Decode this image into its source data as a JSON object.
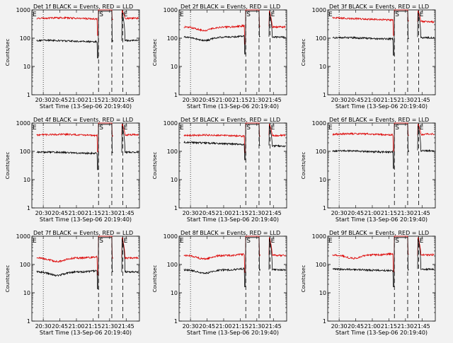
{
  "colors": {
    "background": "#f2f2f2",
    "events": "#000000",
    "lld": "#dd0000",
    "axes": "#000000"
  },
  "common": {
    "ylabel": "Counts/sec",
    "xlabel": "Start Time (13-Sep-06 20:19:40)",
    "x_tick_labels": [
      "20:30",
      "20:45",
      "21:00",
      "21:15",
      "21:30",
      "21:45"
    ],
    "y_tick_labels": [
      "1",
      "10",
      "100",
      "1000"
    ],
    "marker_start": "S",
    "marker_end": "E",
    "marker_left": "E"
  },
  "chart_data": [
    {
      "type": "line",
      "title": "Det 1f BLACK = Events, RED = LLD",
      "xlim": [
        "20:19:40",
        "21:57:00"
      ],
      "ylim": [
        1,
        1000
      ],
      "yscale": "log",
      "x_ticks": [
        "20:30",
        "20:45",
        "21:00",
        "21:15",
        "21:30",
        "21:45"
      ],
      "dotted_line": "20:30",
      "dashed_lines": [
        "21:20",
        "21:32",
        "21:42"
      ],
      "series": [
        {
          "color": "red",
          "shape": "flat",
          "base": 500,
          "peak": 1000
        },
        {
          "color": "black",
          "shape": "flat",
          "base": 80,
          "peak": 900
        }
      ]
    },
    {
      "type": "line",
      "title": "Det 2f BLACK = Events, RED = LLD",
      "xlim": [
        "20:19:40",
        "21:57:00"
      ],
      "ylim": [
        1,
        1000
      ],
      "yscale": "log",
      "x_ticks": [
        "20:30",
        "20:45",
        "21:00",
        "21:15",
        "21:30",
        "21:45"
      ],
      "dotted_line": "20:30",
      "dashed_lines": [
        "21:20",
        "21:32",
        "21:42"
      ],
      "series": [
        {
          "color": "red",
          "shape": "dip",
          "base": 250,
          "peak": 1000
        },
        {
          "color": "black",
          "shape": "dip",
          "base": 110,
          "peak": 900
        }
      ]
    },
    {
      "type": "line",
      "title": "Det 3f BLACK = Events, RED = LLD",
      "xlim": [
        "20:19:40",
        "21:57:00"
      ],
      "ylim": [
        1,
        1000
      ],
      "yscale": "log",
      "x_ticks": [
        "20:30",
        "20:45",
        "21:00",
        "21:15",
        "21:30",
        "21:45"
      ],
      "dotted_line": "20:30",
      "dashed_lines": [
        "21:20",
        "21:32",
        "21:42"
      ],
      "series": [
        {
          "color": "red",
          "shape": "decline",
          "base": 500,
          "peak": 1000
        },
        {
          "color": "black",
          "shape": "flat",
          "base": 100,
          "peak": 900
        }
      ]
    },
    {
      "type": "line",
      "title": "Det 4f BLACK = Events, RED = LLD",
      "xlim": [
        "20:19:40",
        "21:57:00"
      ],
      "ylim": [
        1,
        1000
      ],
      "yscale": "log",
      "x_ticks": [
        "20:30",
        "20:45",
        "21:00",
        "21:15",
        "21:30",
        "21:45"
      ],
      "dotted_line": "20:30",
      "dashed_lines": [
        "21:20",
        "21:32",
        "21:42"
      ],
      "series": [
        {
          "color": "red",
          "shape": "flat",
          "base": 380,
          "peak": 1000
        },
        {
          "color": "black",
          "shape": "flat",
          "base": 90,
          "peak": 900
        }
      ]
    },
    {
      "type": "line",
      "title": "Det 5f BLACK = Events, RED = LLD",
      "xlim": [
        "20:19:40",
        "21:57:00"
      ],
      "ylim": [
        1,
        1000
      ],
      "yscale": "log",
      "x_ticks": [
        "20:30",
        "20:45",
        "21:00",
        "21:15",
        "21:30",
        "21:45"
      ],
      "dotted_line": "20:30",
      "dashed_lines": [
        "21:20",
        "21:32",
        "21:42"
      ],
      "series": [
        {
          "color": "red",
          "shape": "flat",
          "base": 360,
          "peak": 1000
        },
        {
          "color": "black",
          "shape": "decline",
          "base": 200,
          "peak": 900
        }
      ]
    },
    {
      "type": "line",
      "title": "Det 6f BLACK = Events, RED = LLD",
      "xlim": [
        "20:19:40",
        "21:57:00"
      ],
      "ylim": [
        1,
        1000
      ],
      "yscale": "log",
      "x_ticks": [
        "20:30",
        "20:45",
        "21:00",
        "21:15",
        "21:30",
        "21:45"
      ],
      "dotted_line": "20:30",
      "dashed_lines": [
        "21:20",
        "21:32",
        "21:42"
      ],
      "series": [
        {
          "color": "red",
          "shape": "flat",
          "base": 400,
          "peak": 1000
        },
        {
          "color": "black",
          "shape": "flat",
          "base": 100,
          "peak": 900
        }
      ]
    },
    {
      "type": "line",
      "title": "Det 7f BLACK = Events, RED = LLD",
      "xlim": [
        "20:19:40",
        "21:57:00"
      ],
      "ylim": [
        1,
        1000
      ],
      "yscale": "log",
      "x_ticks": [
        "20:30",
        "20:45",
        "21:00",
        "21:15",
        "21:30",
        "21:45"
      ],
      "dotted_line": "20:30",
      "dashed_lines": [
        "21:20",
        "21:32",
        "21:42"
      ],
      "series": [
        {
          "color": "red",
          "shape": "dip",
          "base": 170,
          "peak": 1000
        },
        {
          "color": "black",
          "shape": "dip",
          "base": 55,
          "peak": 900
        }
      ]
    },
    {
      "type": "line",
      "title": "Det 8f BLACK = Events, RED = LLD",
      "xlim": [
        "20:19:40",
        "21:57:00"
      ],
      "ylim": [
        1,
        1000
      ],
      "yscale": "log",
      "x_ticks": [
        "20:30",
        "20:45",
        "21:00",
        "21:15",
        "21:30",
        "21:45"
      ],
      "dotted_line": "20:30",
      "dashed_lines": [
        "21:20",
        "21:32",
        "21:42"
      ],
      "series": [
        {
          "color": "red",
          "shape": "dip",
          "base": 210,
          "peak": 1000
        },
        {
          "color": "black",
          "shape": "dip",
          "base": 65,
          "peak": 900
        }
      ]
    },
    {
      "type": "line",
      "title": "Det 9f BLACK = Events, RED = LLD",
      "xlim": [
        "20:19:40",
        "21:57:00"
      ],
      "ylim": [
        1,
        1000
      ],
      "yscale": "log",
      "x_ticks": [
        "20:30",
        "20:45",
        "21:00",
        "21:15",
        "21:30",
        "21:45"
      ],
      "dotted_line": "20:30",
      "dashed_lines": [
        "21:20",
        "21:32",
        "21:42"
      ],
      "series": [
        {
          "color": "red",
          "shape": "dip",
          "base": 220,
          "peak": 1000
        },
        {
          "color": "black",
          "shape": "flat",
          "base": 65,
          "peak": 900
        }
      ]
    }
  ]
}
